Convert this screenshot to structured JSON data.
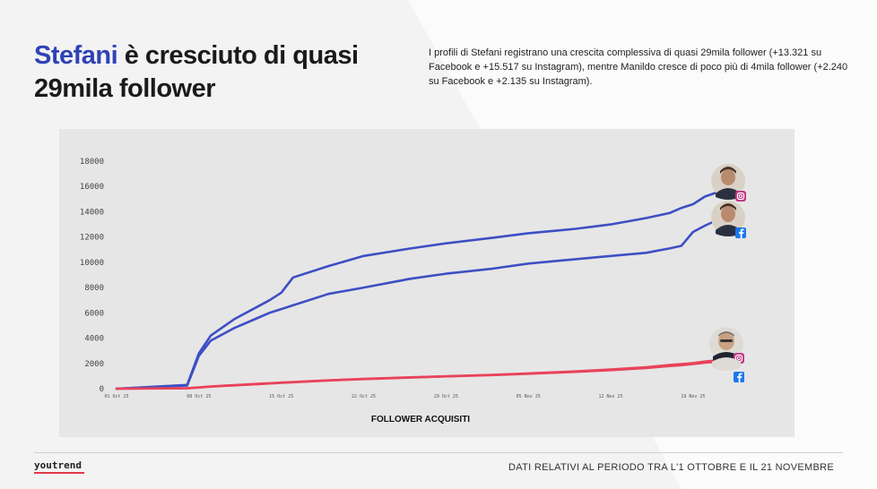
{
  "headline": {
    "accent": "Stefani",
    "rest": "è cresciuto di quasi 29mila follower"
  },
  "intro_text": "I profili di Stefani registrano una crescita complessiva di quasi 29mila follower (+13.321 su Facebook e +15.517 su Instagram), mentre Manildo cresce di poco più di 4mila follower (+2.240 su Facebook e +2.135 su Instagram).",
  "footer": {
    "logo": "youtrend",
    "note": "DATI RELATIVI AL PERIODO TRA L'1 OTTOBRE E IL 21 NOVEMBRE"
  },
  "colors": {
    "accent": "#2f42b5",
    "stefani_line": "#3d4fc4",
    "manildo_line": "#e8435a",
    "panel": "#e6e6e6"
  },
  "icons": {
    "instagram": "instagram-icon",
    "facebook": "facebook-icon"
  },
  "chart_data": {
    "type": "line",
    "title": "",
    "xlabel": "FOLLOWER ACQUISITI",
    "ylabel": "",
    "ylim": [
      0,
      18000
    ],
    "yticks": [
      0,
      2000,
      4000,
      6000,
      8000,
      10000,
      12000,
      14000,
      16000,
      18000
    ],
    "xticks": [
      "01 Oct 25",
      "08 Oct 25",
      "15 Oct 25",
      "22 Oct 25",
      "29 Oct 25",
      "05 Nov 25",
      "12 Nov 25",
      "19 Nov 25"
    ],
    "x": [
      "01 Oct 25",
      "07 Oct 25",
      "08 Oct 25",
      "09 Oct 25",
      "11 Oct 25",
      "13 Oct 25",
      "14 Oct 25",
      "15 Oct 25",
      "16 Oct 25",
      "19 Oct 25",
      "22 Oct 25",
      "26 Oct 25",
      "29 Oct 25",
      "02 Nov 25",
      "05 Nov 25",
      "09 Nov 25",
      "12 Nov 25",
      "15 Nov 25",
      "17 Nov 25",
      "18 Nov 25",
      "19 Nov 25",
      "20 Nov 25",
      "21 Nov 25"
    ],
    "series": [
      {
        "values": [
          0,
          300,
          2800,
          4200,
          5500,
          6500,
          7000,
          7600,
          8800,
          9700,
          10500,
          11100,
          11500,
          11950,
          12300,
          12650,
          13000,
          13500,
          13900,
          14300,
          14600,
          15200,
          15517
        ],
        "color": "#3d4fc4"
      },
      {
        "values": [
          0,
          250,
          2600,
          3800,
          4800,
          5600,
          6000,
          6300,
          6600,
          7500,
          8000,
          8700,
          9100,
          9500,
          9900,
          10250,
          10500,
          10750,
          11100,
          11300,
          12400,
          12900,
          13321
        ],
        "color": "#3d4fc4"
      },
      {
        "values": [
          0,
          40,
          100,
          180,
          280,
          380,
          430,
          480,
          530,
          660,
          780,
          900,
          980,
          1080,
          1180,
          1330,
          1470,
          1640,
          1790,
          1860,
          1950,
          2060,
          2135
        ],
        "color": "#e8435a"
      },
      {
        "values": [
          0,
          30,
          90,
          160,
          260,
          360,
          410,
          460,
          510,
          650,
          760,
          880,
          980,
          1100,
          1210,
          1370,
          1520,
          1700,
          1870,
          1940,
          2030,
          2150,
          2240
        ],
        "color": "#e8435a"
      }
    ],
    "legend": "none",
    "grid": false
  }
}
